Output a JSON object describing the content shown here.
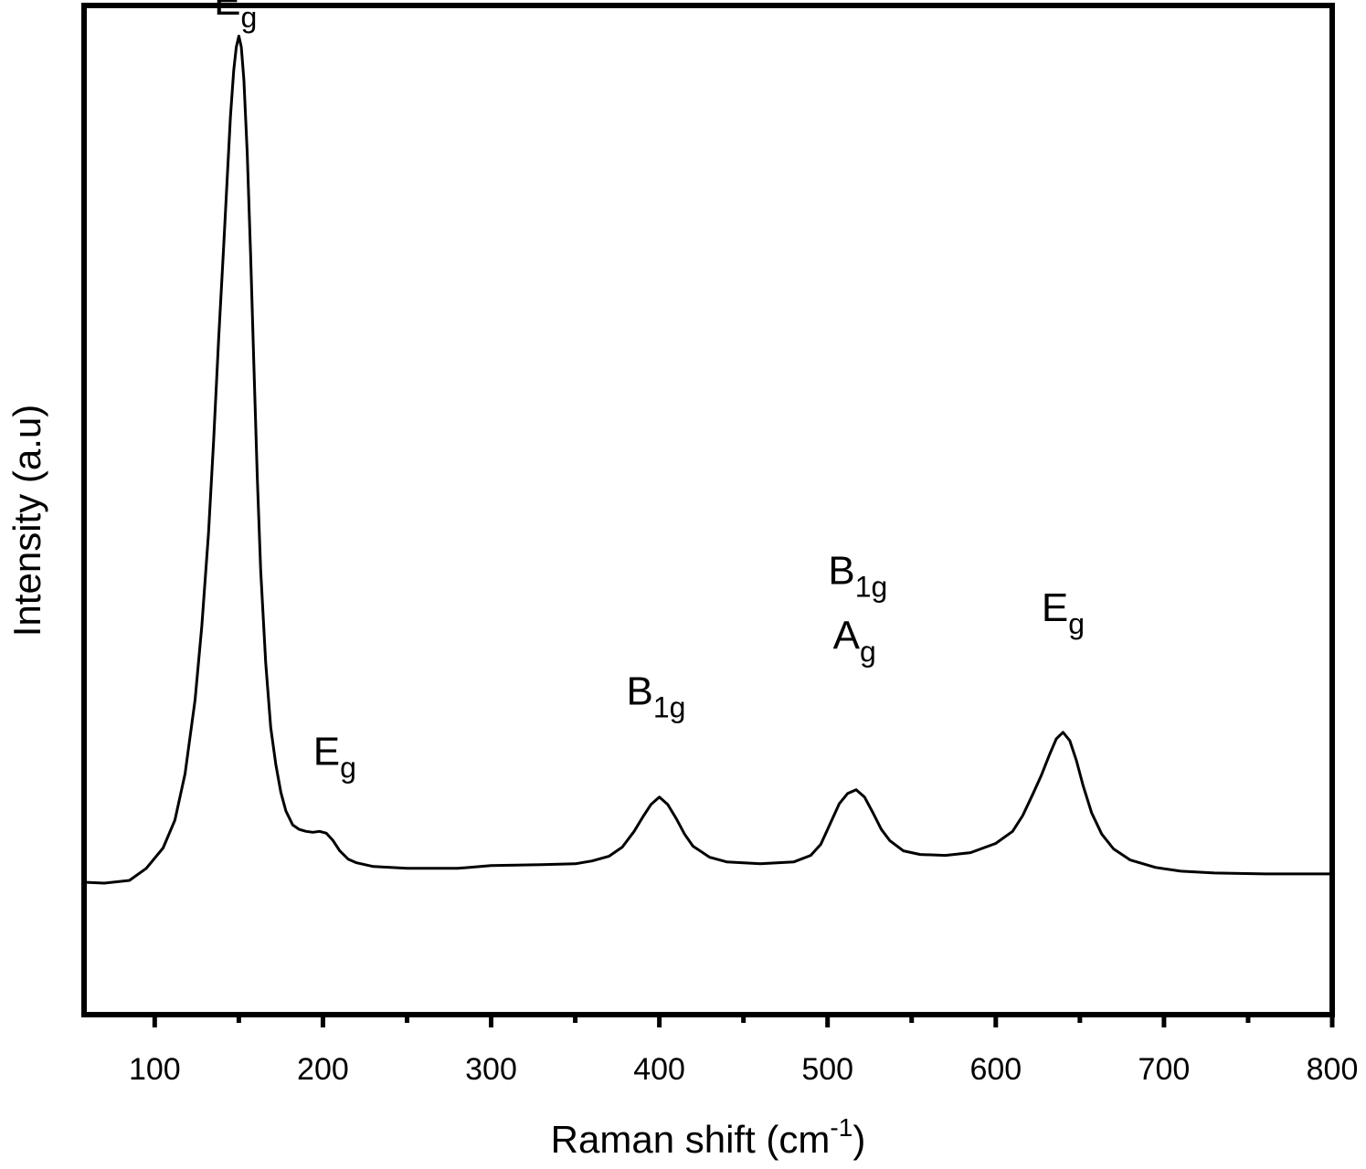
{
  "chart_data": {
    "type": "line",
    "title": "",
    "xlabel": "Raman shift (cm",
    "xlabel_sup": "-1",
    "xlabel_end": ")",
    "ylabel": "Intensity (a.u)",
    "xlim": [
      58,
      800
    ],
    "ylim": [
      -0.06,
      1.03
    ],
    "y_ticks_shown": false,
    "grid": false,
    "legend": "none",
    "x_major_ticks": [
      100,
      200,
      300,
      400,
      500,
      600,
      700,
      800
    ],
    "x_tick_labels": [
      "100",
      "200",
      "300",
      "400",
      "500",
      "600",
      "700",
      "800"
    ],
    "x_minor_ticks": [
      150,
      250,
      350,
      450,
      550,
      650,
      750
    ],
    "colors": {
      "line": "#000000",
      "axes": "#000000",
      "background": "#ffffff"
    },
    "series": [
      {
        "x": [
          58,
          70,
          85,
          95,
          105,
          112,
          118,
          124,
          128,
          132,
          135,
          138,
          141,
          143,
          145,
          147,
          148.5,
          150,
          151.5,
          153,
          155,
          157,
          159,
          161,
          163,
          166,
          169,
          172,
          175,
          178,
          182,
          186,
          190,
          194,
          198,
          202,
          206,
          210,
          215,
          220,
          230,
          250,
          280,
          300,
          330,
          350,
          360,
          370,
          378,
          385,
          390,
          395,
          400,
          405,
          410,
          415,
          420,
          430,
          440,
          460,
          480,
          490,
          496,
          502,
          507,
          512,
          517,
          522,
          527,
          532,
          537,
          545,
          555,
          570,
          585,
          600,
          610,
          616,
          622,
          627,
          632,
          636,
          640,
          644,
          648,
          652,
          657,
          663,
          670,
          680,
          695,
          710,
          730,
          760,
          800
        ],
        "y": [
          0.083,
          0.082,
          0.085,
          0.098,
          0.12,
          0.15,
          0.2,
          0.28,
          0.36,
          0.46,
          0.56,
          0.67,
          0.77,
          0.84,
          0.91,
          0.96,
          0.985,
          0.997,
          0.985,
          0.95,
          0.87,
          0.76,
          0.64,
          0.52,
          0.42,
          0.32,
          0.25,
          0.21,
          0.18,
          0.16,
          0.145,
          0.14,
          0.138,
          0.137,
          0.138,
          0.136,
          0.128,
          0.117,
          0.108,
          0.104,
          0.1,
          0.098,
          0.098,
          0.101,
          0.102,
          0.103,
          0.106,
          0.111,
          0.121,
          0.138,
          0.153,
          0.167,
          0.175,
          0.167,
          0.152,
          0.135,
          0.122,
          0.11,
          0.105,
          0.103,
          0.105,
          0.112,
          0.124,
          0.148,
          0.168,
          0.179,
          0.183,
          0.175,
          0.158,
          0.14,
          0.128,
          0.117,
          0.113,
          0.112,
          0.115,
          0.125,
          0.138,
          0.155,
          0.178,
          0.198,
          0.221,
          0.238,
          0.245,
          0.236,
          0.214,
          0.187,
          0.158,
          0.135,
          0.119,
          0.107,
          0.099,
          0.095,
          0.093,
          0.092,
          0.092
        ]
      }
    ],
    "annotations": [
      {
        "x": 148,
        "y": 1.02,
        "base": "E",
        "sub": "g"
      },
      {
        "x": 207,
        "y": 0.21,
        "base": "E",
        "sub": "g"
      },
      {
        "x": 398,
        "y": 0.275,
        "base": "B",
        "sub": "1g"
      },
      {
        "x": 518,
        "y": 0.405,
        "base": "B",
        "sub": "1g"
      },
      {
        "x": 516,
        "y": 0.335,
        "base": "A",
        "sub": "g"
      },
      {
        "x": 640,
        "y": 0.365,
        "base": "E",
        "sub": "g"
      }
    ]
  }
}
